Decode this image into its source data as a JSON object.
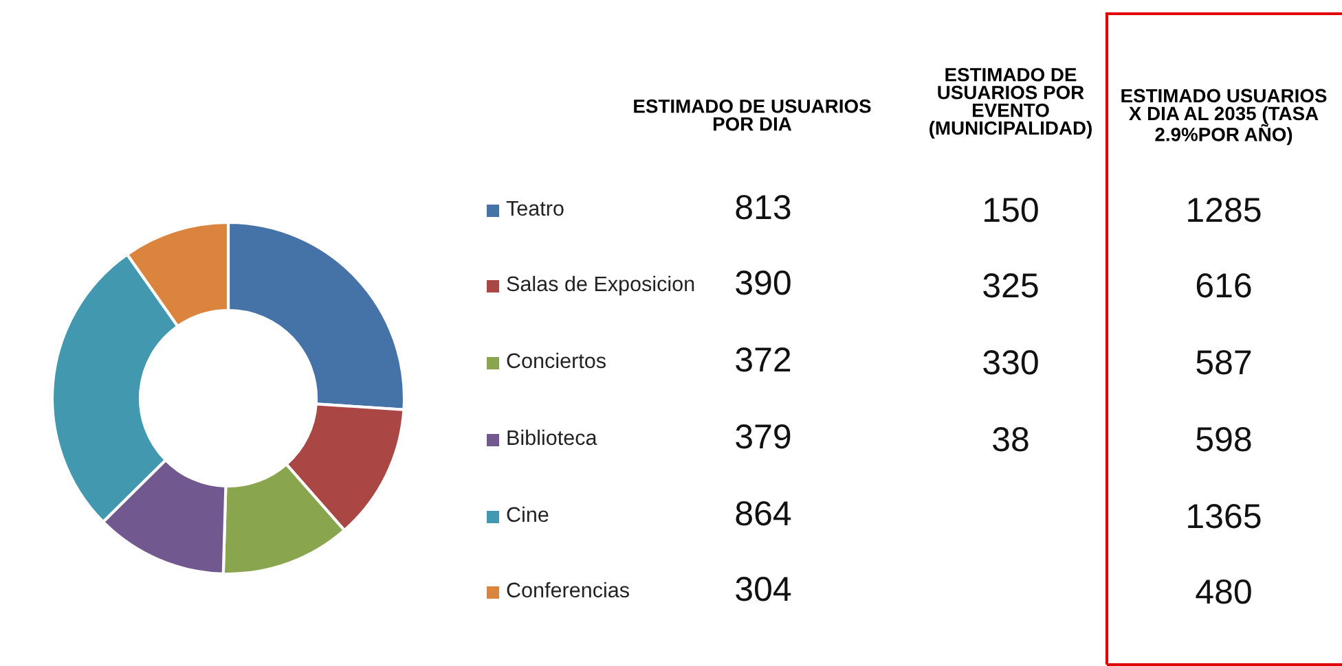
{
  "chart_data": [
    {
      "type": "donut",
      "categories": [
        "Teatro",
        "Salas de Exposicion",
        "Conciertos",
        "Biblioteca",
        "Cine",
        "Conferencias"
      ],
      "values": [
        813,
        390,
        372,
        379,
        864,
        304
      ],
      "colors": [
        "#4572a7",
        "#aa4643",
        "#89a54e",
        "#71588f",
        "#4198af",
        "#db843d"
      ],
      "legend": "right",
      "data_labels": true,
      "annotations": [
        "ESTIMADO DE USUARIOS\nPOR DIA"
      ]
    },
    {
      "type": "other",
      "annotations": [
        "ESTIMADO DE\nUSUARIOS POR\nEVENTO\n(MUNICIPALIDAD)",
        "ESTIMADO USUARIOS\nX DIA AL 2035 (TASA\n2.9%POR AÑO)",
        "150",
        "325",
        "330",
        "38",
        "1285",
        "616",
        "587",
        "598",
        "1365",
        "480"
      ]
    }
  ]
}
